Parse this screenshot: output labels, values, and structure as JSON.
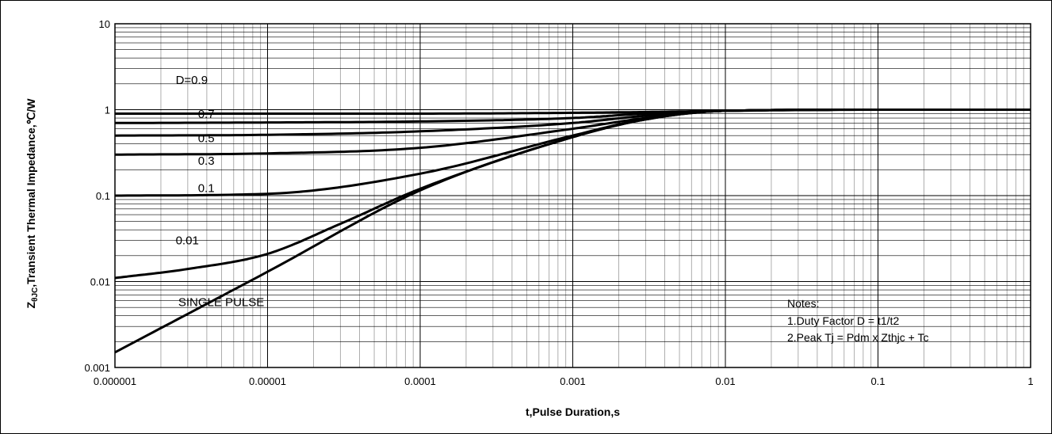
{
  "chart_data": {
    "type": "line",
    "title": "",
    "xlabel": "t,Pulse Duration,s",
    "ylabel_main": "Z",
    "ylabel_sub": "θJC",
    "ylabel_rest": ",Transient Thermal Impedance,℃/W",
    "x_scale": "log",
    "y_scale": "log",
    "xlim": [
      1e-06,
      1
    ],
    "ylim": [
      0.001,
      10
    ],
    "grid": true,
    "x_tick_labels": [
      "0.000001",
      "0.00001",
      "0.0001",
      "0.001",
      "0.01",
      "0.1",
      "1"
    ],
    "y_tick_labels": [
      "0.001",
      "0.01",
      "0.1",
      "1",
      "10"
    ],
    "series": [
      {
        "name": "D=0.9",
        "x": [
          1e-06,
          1e-05,
          0.0001,
          0.001,
          0.003,
          0.01,
          0.1,
          1
        ],
        "y": [
          0.9,
          0.9,
          0.9,
          0.92,
          0.94,
          0.97,
          1.0,
          1.0
        ]
      },
      {
        "name": "0.7",
        "x": [
          1e-06,
          1e-05,
          0.0001,
          0.001,
          0.003,
          0.01,
          0.1,
          1
        ],
        "y": [
          0.7,
          0.71,
          0.73,
          0.8,
          0.9,
          0.97,
          1.0,
          1.0
        ]
      },
      {
        "name": "0.5",
        "x": [
          1e-06,
          1e-05,
          0.0001,
          0.001,
          0.003,
          0.01,
          0.1,
          1
        ],
        "y": [
          0.5,
          0.51,
          0.56,
          0.7,
          0.85,
          0.97,
          1.0,
          1.0
        ]
      },
      {
        "name": "0.3",
        "x": [
          1e-06,
          1e-05,
          0.0001,
          0.001,
          0.003,
          0.01,
          0.1,
          1
        ],
        "y": [
          0.3,
          0.31,
          0.36,
          0.6,
          0.8,
          0.97,
          1.0,
          1.0
        ]
      },
      {
        "name": "0.1",
        "x": [
          1e-06,
          1e-05,
          0.0001,
          0.001,
          0.003,
          0.01,
          0.1,
          1
        ],
        "y": [
          0.1,
          0.105,
          0.18,
          0.5,
          0.78,
          0.97,
          1.0,
          1.0
        ]
      },
      {
        "name": "0.01",
        "x": [
          1e-06,
          3e-06,
          1e-05,
          3e-05,
          0.0001,
          0.001,
          0.003,
          0.01,
          0.1,
          1
        ],
        "y": [
          0.011,
          0.014,
          0.021,
          0.047,
          0.12,
          0.48,
          0.77,
          0.97,
          1.0,
          1.0
        ]
      },
      {
        "name": "SINGLE PULSE",
        "x": [
          1e-06,
          1e-05,
          0.0001,
          0.001,
          0.003,
          0.01,
          0.1,
          1
        ],
        "y": [
          0.0015,
          0.013,
          0.115,
          0.48,
          0.77,
          0.97,
          1.0,
          1.0
        ]
      }
    ],
    "curve_labels": [
      {
        "text": "D=0.9",
        "x": 2.5e-06,
        "y": 2.0
      },
      {
        "text": "0.7",
        "x": 3.5e-06,
        "y": 0.8
      },
      {
        "text": "0.5",
        "x": 3.5e-06,
        "y": 0.42
      },
      {
        "text": "0.3",
        "x": 3.5e-06,
        "y": 0.23
      },
      {
        "text": "0.1",
        "x": 3.5e-06,
        "y": 0.11
      },
      {
        "text": "0.01",
        "x": 2.5e-06,
        "y": 0.027
      },
      {
        "text": "SINGLE PULSE",
        "x": 2.6e-06,
        "y": 0.0052
      }
    ],
    "notes": [
      "Notes:",
      "1.Duty Factor D = t1/t2",
      "2.Peak Tj = Pdm x Zthjc + Tc"
    ]
  }
}
